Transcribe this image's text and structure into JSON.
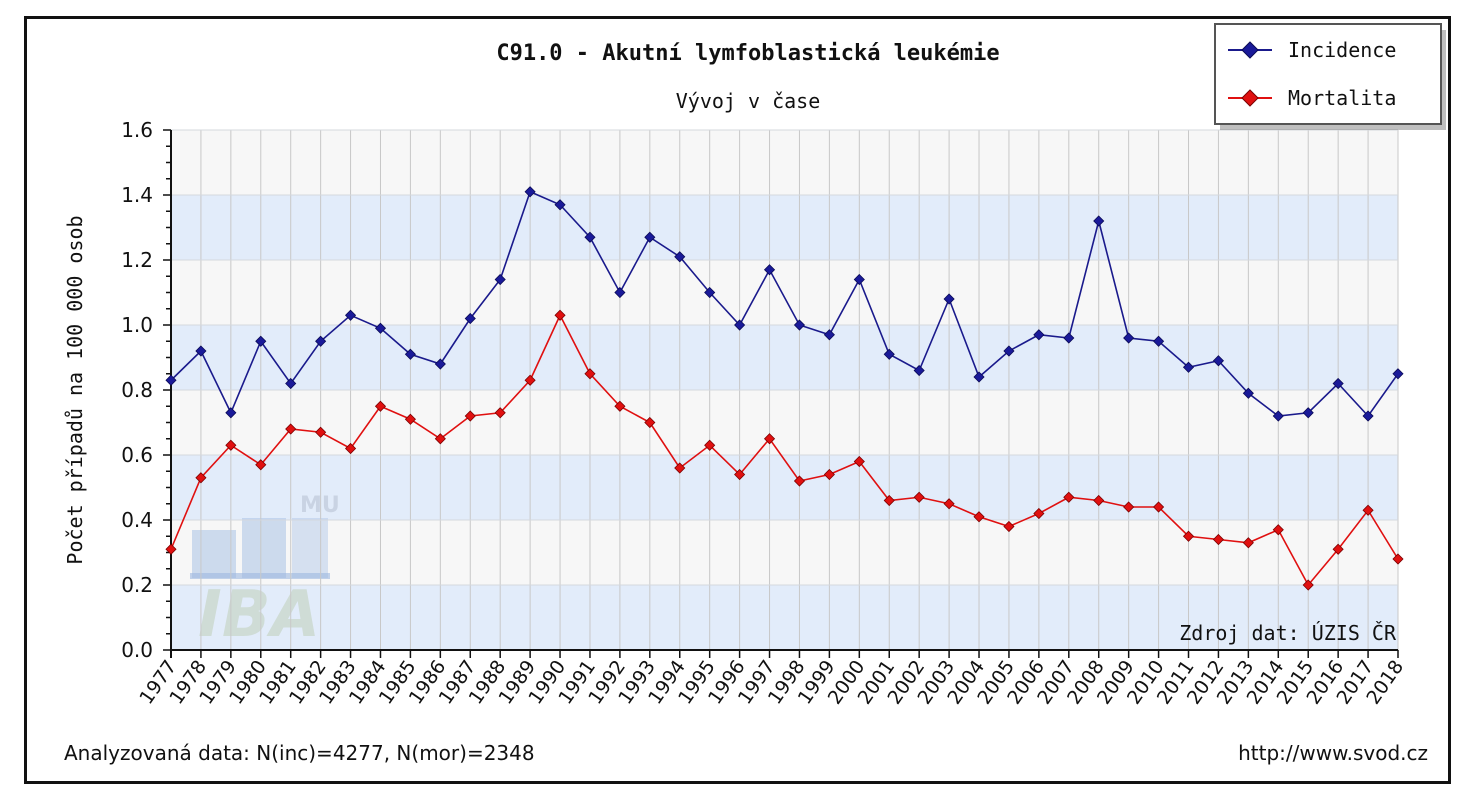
{
  "chart_data": {
    "type": "line",
    "title": "C91.0 - Akutní lymfoblastická leukémie",
    "subtitle": "Vývoj v čase",
    "ylabel": "Počet případů na 100 000 osob",
    "xlabel": "",
    "ylim": [
      0,
      1.6
    ],
    "yticks": [
      "0.0",
      "0.2",
      "0.4",
      "0.6",
      "0.8",
      "1.0",
      "1.2",
      "1.4",
      "1.6"
    ],
    "grid": true,
    "legend_position": "top-right",
    "categories": [
      "1977",
      "1978",
      "1979",
      "1980",
      "1981",
      "1982",
      "1983",
      "1984",
      "1985",
      "1986",
      "1987",
      "1988",
      "1989",
      "1990",
      "1991",
      "1992",
      "1993",
      "1994",
      "1995",
      "1996",
      "1997",
      "1998",
      "1999",
      "2000",
      "2001",
      "2002",
      "2003",
      "2004",
      "2005",
      "2006",
      "2007",
      "2008",
      "2009",
      "2010",
      "2011",
      "2012",
      "2013",
      "2014",
      "2015",
      "2016",
      "2017",
      "2018"
    ],
    "series": [
      {
        "name": "Incidence",
        "color": "#1a1a8c",
        "marker_color": "#1a1a99",
        "values": [
          0.83,
          0.92,
          0.73,
          0.95,
          0.82,
          0.95,
          1.03,
          0.99,
          0.91,
          0.88,
          1.02,
          1.14,
          1.41,
          1.37,
          1.27,
          1.1,
          1.27,
          1.21,
          1.1,
          1.0,
          1.17,
          1.0,
          0.97,
          1.14,
          0.91,
          0.86,
          1.08,
          0.84,
          0.92,
          0.97,
          0.96,
          1.32,
          0.96,
          0.95,
          0.87,
          0.89,
          0.79,
          0.72,
          0.73,
          0.82,
          0.72,
          0.85
        ]
      },
      {
        "name": "Mortalita",
        "color": "#e01010",
        "marker_color": "#e01010",
        "values": [
          0.31,
          0.53,
          0.63,
          0.57,
          0.68,
          0.67,
          0.62,
          0.75,
          0.71,
          0.65,
          0.72,
          0.73,
          0.83,
          1.03,
          0.85,
          0.75,
          0.7,
          0.56,
          0.63,
          0.54,
          0.65,
          0.52,
          0.54,
          0.58,
          0.46,
          0.47,
          0.45,
          0.41,
          0.38,
          0.42,
          0.47,
          0.46,
          0.44,
          0.44,
          0.35,
          0.34,
          0.33,
          0.37,
          0.2,
          0.31,
          0.43,
          0.28
        ]
      }
    ],
    "annotations": {
      "source": "Zdroj dat: ÚZIS ČR",
      "analyzed": "Analyzovaná data: N(inc)=4277, N(mor)=2348",
      "url": "http://www.svod.cz",
      "watermark_top": "MU",
      "watermark_bottom": "IBA"
    },
    "colors": {
      "band_blue": "#e2ecfa",
      "band_white": "#f7f7f7",
      "grid": "#c8c8c8"
    }
  }
}
